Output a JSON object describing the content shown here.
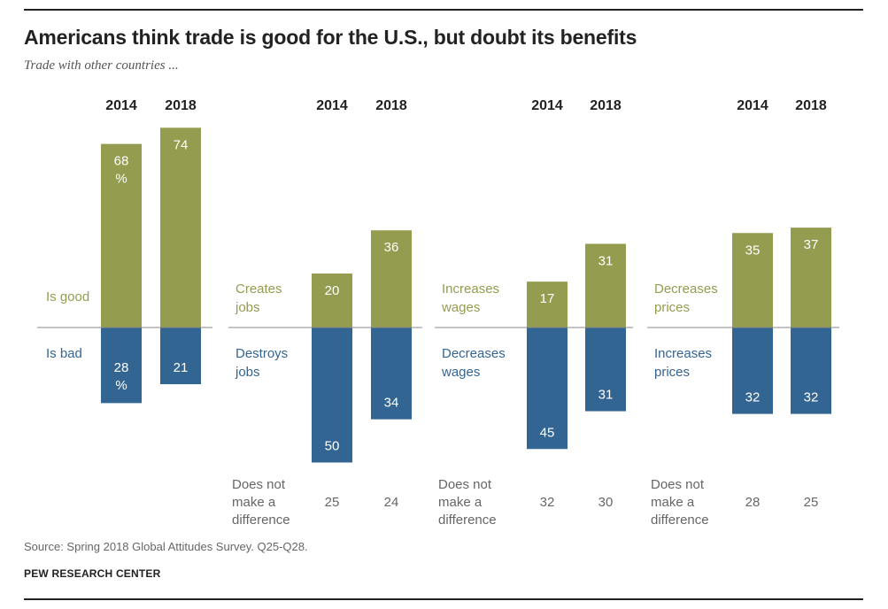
{
  "title": "Americans think trade is good for the U.S., but doubt its benefits",
  "subtitle": "Trade with other countries ...",
  "source": "Source: Spring 2018 Global Attitudes Survey. Q25-Q28.",
  "org": "PEW RESEARCH CENTER",
  "colors": {
    "positive": "#949c4f",
    "negative": "#336593",
    "text_muted": "#666666"
  },
  "chart_data": [
    {
      "type": "bar",
      "categories": [
        "2014",
        "2018"
      ],
      "series": [
        {
          "name": "Is good",
          "values": [
            68,
            74
          ],
          "labels": [
            "68\n%",
            "74"
          ]
        },
        {
          "name": "Is bad",
          "values": [
            28,
            21
          ],
          "labels": [
            "28\n%",
            "21"
          ]
        }
      ],
      "no_difference": null
    },
    {
      "type": "bar",
      "categories": [
        "2014",
        "2018"
      ],
      "series": [
        {
          "name": "Creates\njobs",
          "values": [
            20,
            36
          ],
          "labels": [
            "20",
            "36"
          ]
        },
        {
          "name": "Destroys\njobs",
          "values": [
            50,
            34
          ],
          "labels": [
            "50",
            "34"
          ]
        }
      ],
      "no_difference": {
        "label": "Does not\nmake a\ndifference",
        "values": [
          25,
          24
        ]
      }
    },
    {
      "type": "bar",
      "categories": [
        "2014",
        "2018"
      ],
      "series": [
        {
          "name": "Increases\nwages",
          "values": [
            17,
            31
          ],
          "labels": [
            "17",
            "31"
          ]
        },
        {
          "name": "Decreases\nwages",
          "values": [
            45,
            31
          ],
          "labels": [
            "45",
            "31"
          ]
        }
      ],
      "no_difference": {
        "label": "Does not\nmake a\ndifference",
        "values": [
          32,
          30
        ]
      }
    },
    {
      "type": "bar",
      "categories": [
        "2014",
        "2018"
      ],
      "series": [
        {
          "name": "Decreases\nprices",
          "values": [
            35,
            37
          ],
          "labels": [
            "35",
            "37"
          ]
        },
        {
          "name": "Increases\nprices",
          "values": [
            32,
            32
          ],
          "labels": [
            "32",
            "32"
          ]
        }
      ],
      "no_difference": {
        "label": "Does not\nmake a\ndifference",
        "values": [
          28,
          25
        ]
      }
    }
  ]
}
